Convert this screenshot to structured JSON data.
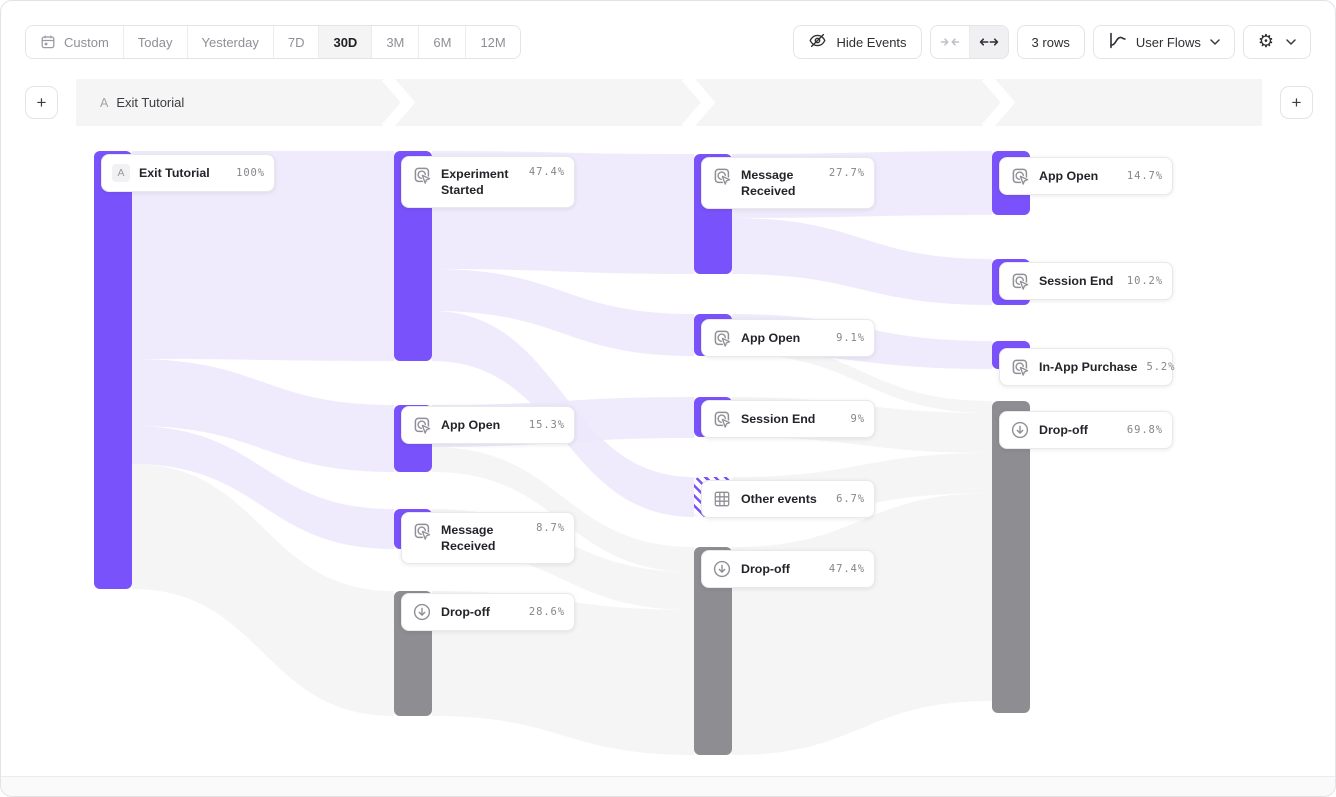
{
  "toolbar": {
    "date_ranges": [
      "Custom",
      "Today",
      "Yesterday",
      "7D",
      "30D",
      "3M",
      "6M",
      "12M"
    ],
    "active_range": "30D",
    "hide_events_label": "Hide Events",
    "rows_label": "3 rows",
    "view_selector_label": "User Flows"
  },
  "steps_header": {
    "badge": "A",
    "label": "Exit Tutorial"
  },
  "colors": {
    "accent": "#7A52FB",
    "flow_light": "#ECE8FB",
    "dropoff": "#8E8E92",
    "dropoff_flow": "#F4F4F6"
  },
  "chart_data": {
    "type": "sankey",
    "title": "User flow starting from Exit Tutorial (30D)",
    "columns": [
      {
        "nodes": [
          {
            "id": "c0-exit-tutorial",
            "label": "Exit Tutorial",
            "value": "100%",
            "kind": "start",
            "badge": "A"
          }
        ]
      },
      {
        "nodes": [
          {
            "id": "c1-experiment-started",
            "label": "Experiment Started",
            "value": "47.4%",
            "kind": "event"
          },
          {
            "id": "c1-app-open",
            "label": "App Open",
            "value": "15.3%",
            "kind": "event"
          },
          {
            "id": "c1-message-received",
            "label": "Message Received",
            "value": "8.7%",
            "kind": "event"
          },
          {
            "id": "c1-drop-off",
            "label": "Drop-off",
            "value": "28.6%",
            "kind": "dropoff"
          }
        ]
      },
      {
        "nodes": [
          {
            "id": "c2-message-received",
            "label": "Message Received",
            "value": "27.7%",
            "kind": "event"
          },
          {
            "id": "c2-app-open",
            "label": "App Open",
            "value": "9.1%",
            "kind": "event"
          },
          {
            "id": "c2-session-end",
            "label": "Session End",
            "value": "9%",
            "kind": "event"
          },
          {
            "id": "c2-other-events",
            "label": "Other events",
            "value": "6.7%",
            "kind": "other"
          },
          {
            "id": "c2-drop-off",
            "label": "Drop-off",
            "value": "47.4%",
            "kind": "dropoff"
          }
        ]
      },
      {
        "nodes": [
          {
            "id": "c3-app-open",
            "label": "App Open",
            "value": "14.7%",
            "kind": "event"
          },
          {
            "id": "c3-session-end",
            "label": "Session End",
            "value": "10.2%",
            "kind": "event"
          },
          {
            "id": "c3-in-app-purchase",
            "label": "In-App Purchase",
            "value": "5.2%",
            "kind": "event"
          },
          {
            "id": "c3-drop-off",
            "label": "Drop-off",
            "value": "69.8%",
            "kind": "dropoff"
          }
        ]
      }
    ]
  }
}
